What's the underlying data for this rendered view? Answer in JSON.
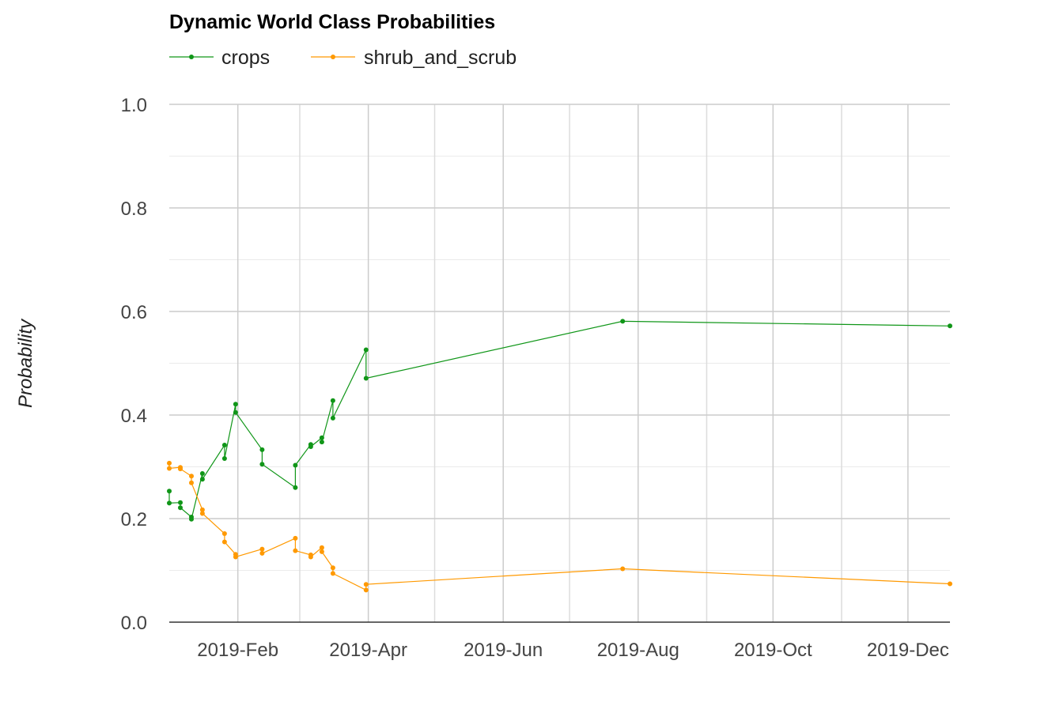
{
  "chart_data": {
    "type": "line",
    "title": "Dynamic World Class Probabilities",
    "ylabel": "Probability",
    "xlabel": "",
    "ylim": [
      0,
      1
    ],
    "y_ticks": [
      0.0,
      0.2,
      0.4,
      0.6,
      0.8,
      1.0
    ],
    "y_tick_labels": [
      "0.0",
      "0.2",
      "0.4",
      "0.6",
      "0.8",
      "1.0"
    ],
    "x_range": [
      "2019-01-01",
      "2019-12-20"
    ],
    "x_ticks": [
      "2019-02-01",
      "2019-04-01",
      "2019-06-01",
      "2019-08-01",
      "2019-10-01",
      "2019-12-01"
    ],
    "x_tick_labels": [
      "2019-Feb",
      "2019-Apr",
      "2019-Jun",
      "2019-Aug",
      "2019-Oct",
      "2019-Dec"
    ],
    "grid": true,
    "legend_position": "top-left",
    "series": [
      {
        "name": "crops",
        "color": "#109618",
        "points": [
          [
            "2019-01-01",
            0.253
          ],
          [
            "2019-01-01",
            0.23
          ],
          [
            "2019-01-06",
            0.231
          ],
          [
            "2019-01-06",
            0.221
          ],
          [
            "2019-01-11",
            0.203
          ],
          [
            "2019-01-11",
            0.199
          ],
          [
            "2019-01-16",
            0.287
          ],
          [
            "2019-01-16",
            0.276
          ],
          [
            "2019-01-26",
            0.342
          ],
          [
            "2019-01-26",
            0.316
          ],
          [
            "2019-01-31",
            0.421
          ],
          [
            "2019-01-31",
            0.405
          ],
          [
            "2019-02-12",
            0.333
          ],
          [
            "2019-02-12",
            0.305
          ],
          [
            "2019-02-27",
            0.26
          ],
          [
            "2019-02-27",
            0.303
          ],
          [
            "2019-03-06",
            0.343
          ],
          [
            "2019-03-06",
            0.339
          ],
          [
            "2019-03-11",
            0.356
          ],
          [
            "2019-03-11",
            0.348
          ],
          [
            "2019-03-16",
            0.428
          ],
          [
            "2019-03-16",
            0.394
          ],
          [
            "2019-03-31",
            0.526
          ],
          [
            "2019-03-31",
            0.471
          ],
          [
            "2019-07-25",
            0.581
          ],
          [
            "2019-12-20",
            0.572
          ]
        ]
      },
      {
        "name": "shrub_and_scrub",
        "color": "#FF9900",
        "points": [
          [
            "2019-01-01",
            0.307
          ],
          [
            "2019-01-01",
            0.297
          ],
          [
            "2019-01-06",
            0.299
          ],
          [
            "2019-01-06",
            0.296
          ],
          [
            "2019-01-11",
            0.282
          ],
          [
            "2019-01-11",
            0.269
          ],
          [
            "2019-01-16",
            0.217
          ],
          [
            "2019-01-16",
            0.21
          ],
          [
            "2019-01-26",
            0.171
          ],
          [
            "2019-01-26",
            0.155
          ],
          [
            "2019-01-31",
            0.131
          ],
          [
            "2019-01-31",
            0.126
          ],
          [
            "2019-02-12",
            0.141
          ],
          [
            "2019-02-12",
            0.133
          ],
          [
            "2019-02-27",
            0.162
          ],
          [
            "2019-02-27",
            0.138
          ],
          [
            "2019-03-06",
            0.13
          ],
          [
            "2019-03-06",
            0.126
          ],
          [
            "2019-03-11",
            0.144
          ],
          [
            "2019-03-11",
            0.136
          ],
          [
            "2019-03-16",
            0.105
          ],
          [
            "2019-03-16",
            0.094
          ],
          [
            "2019-03-31",
            0.062
          ],
          [
            "2019-03-31",
            0.073
          ],
          [
            "2019-07-25",
            0.103
          ],
          [
            "2019-12-20",
            0.074
          ]
        ]
      }
    ]
  }
}
